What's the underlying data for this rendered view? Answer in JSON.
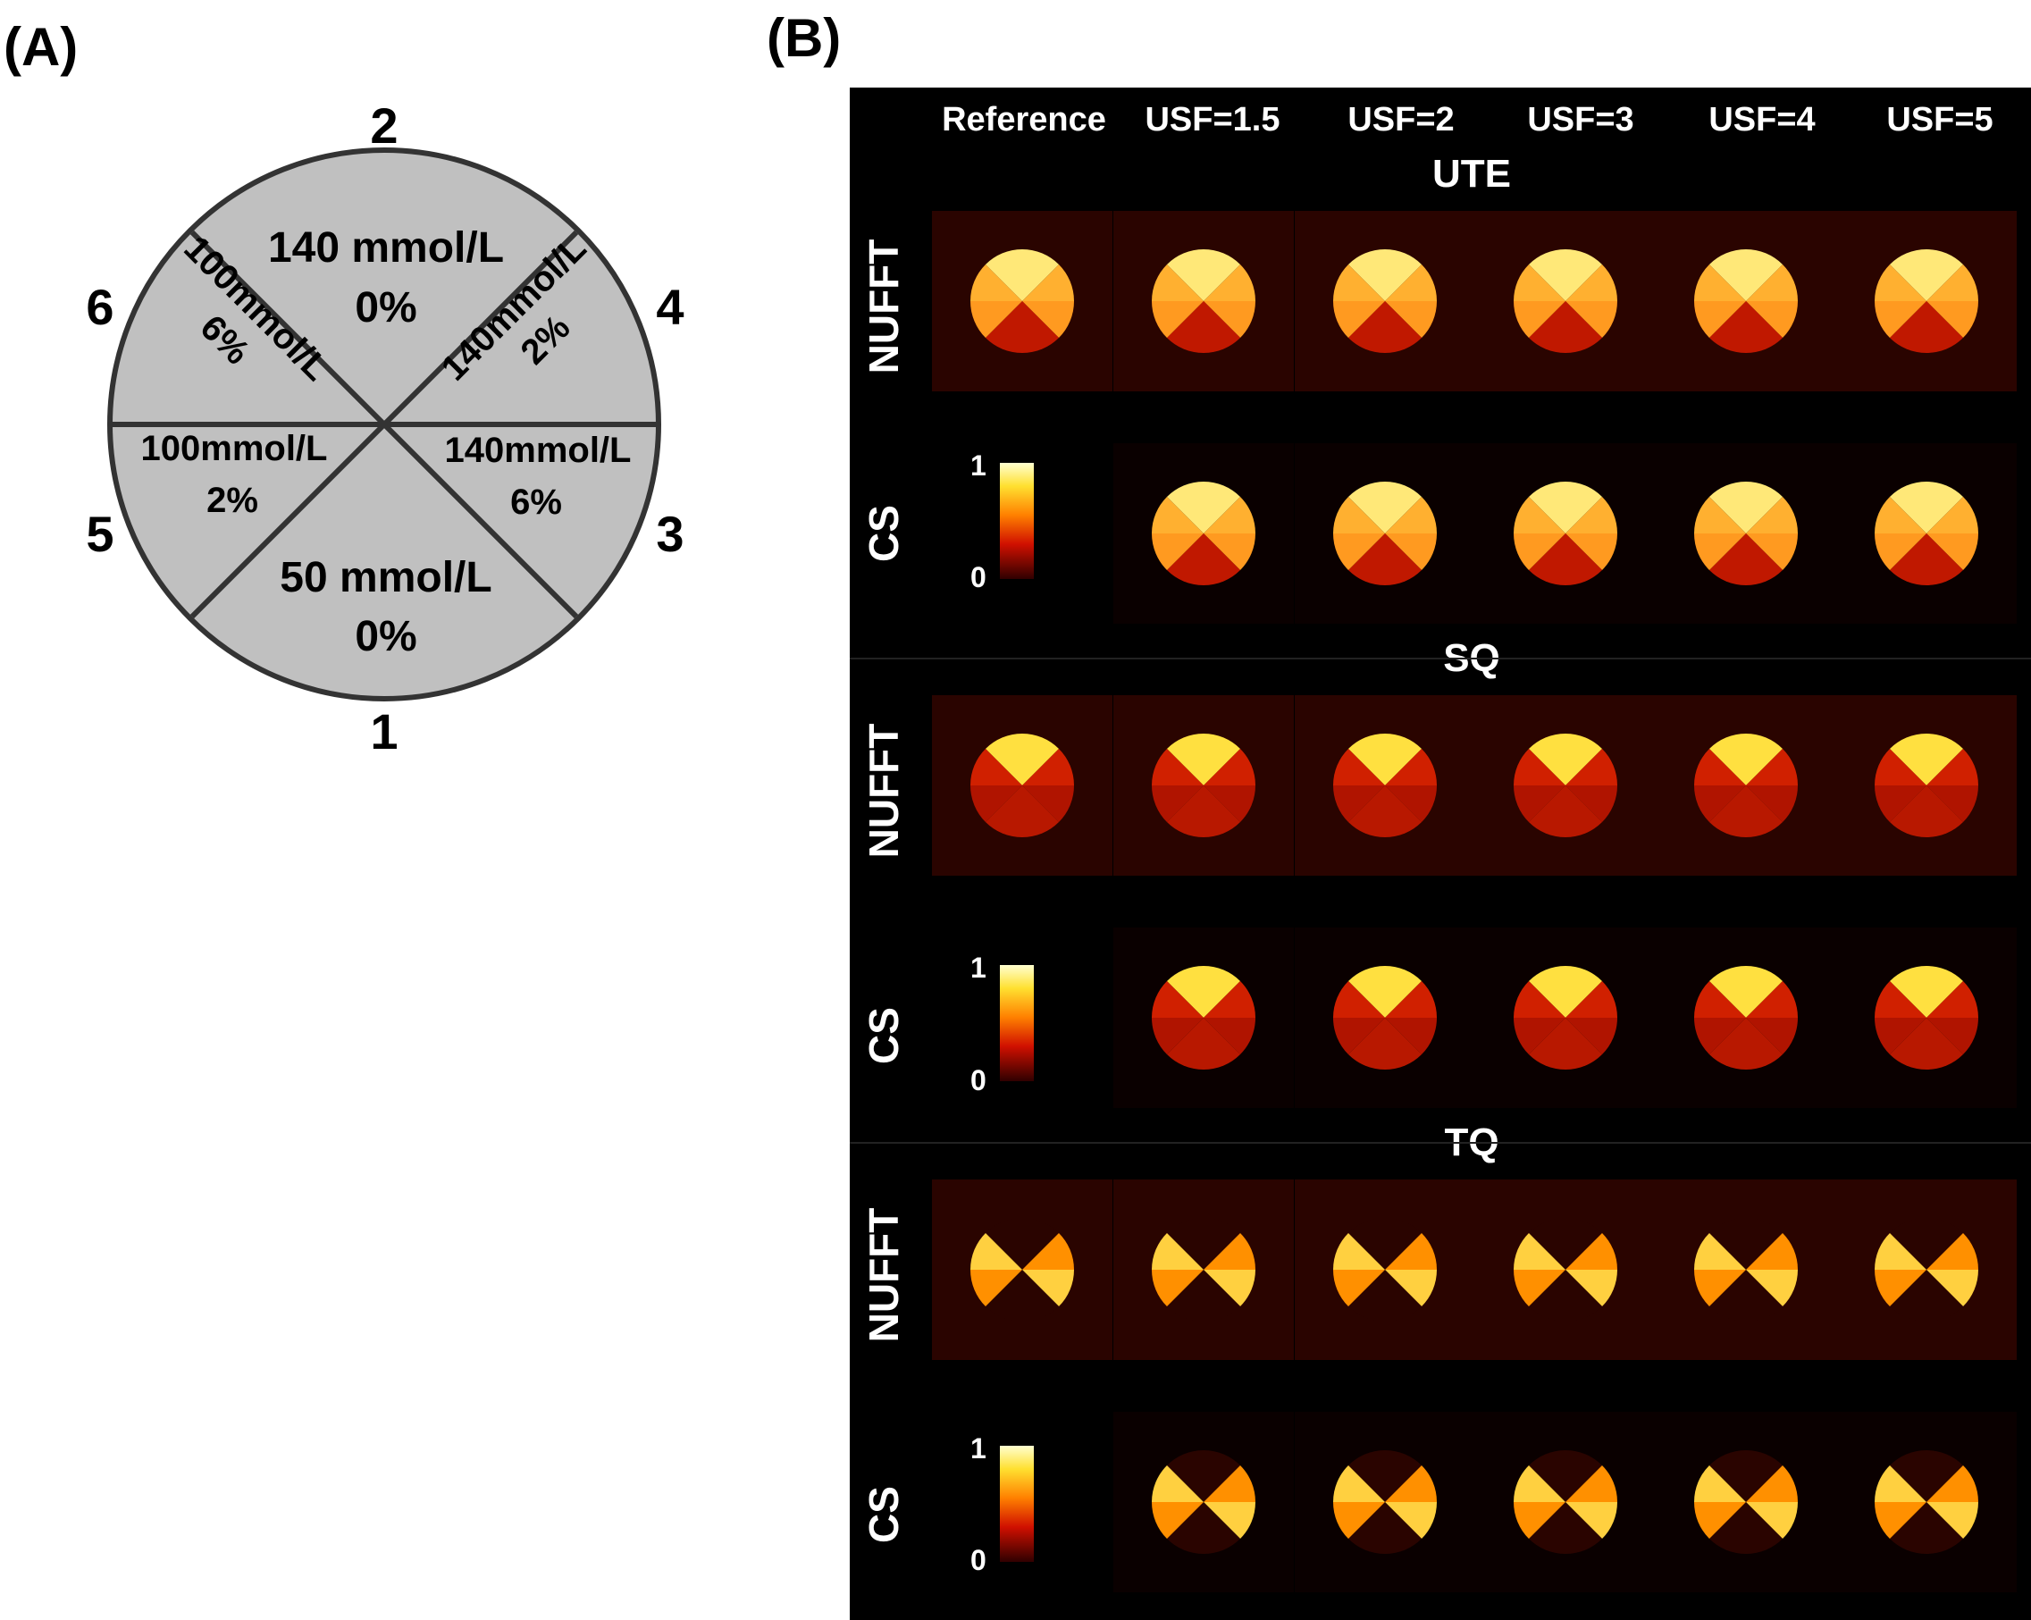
{
  "panel_a": {
    "tag": "(A)",
    "compartments": [
      {
        "conc": "140 mmol/L",
        "pct": "0%"
      },
      {
        "conc": "140mmol/L",
        "pct": "2%"
      },
      {
        "conc": "140mmol/L",
        "pct": "6%"
      },
      {
        "conc": "50 mmol/L",
        "pct": "0%"
      },
      {
        "conc": "100mmol/L",
        "pct": "2%"
      },
      {
        "conc": "100mmol/L",
        "pct": "6%"
      }
    ],
    "numbers": [
      "2",
      "4",
      "3",
      "1",
      "5",
      "6"
    ]
  },
  "panel_b": {
    "tag": "(B)",
    "columns": [
      "Reference",
      "USF=1.5",
      "USF=2",
      "USF=3",
      "USF=4",
      "USF=5"
    ],
    "sections": [
      "UTE",
      "SQ",
      "TQ"
    ],
    "row_labels": [
      "NUFFT",
      "CS"
    ],
    "colorbar": {
      "max": "1",
      "min": "0"
    }
  },
  "colors": {
    "phantom_fill": "#c0c0c0",
    "panel_bg": "#000000",
    "text_on_dark": "#ffffff"
  }
}
